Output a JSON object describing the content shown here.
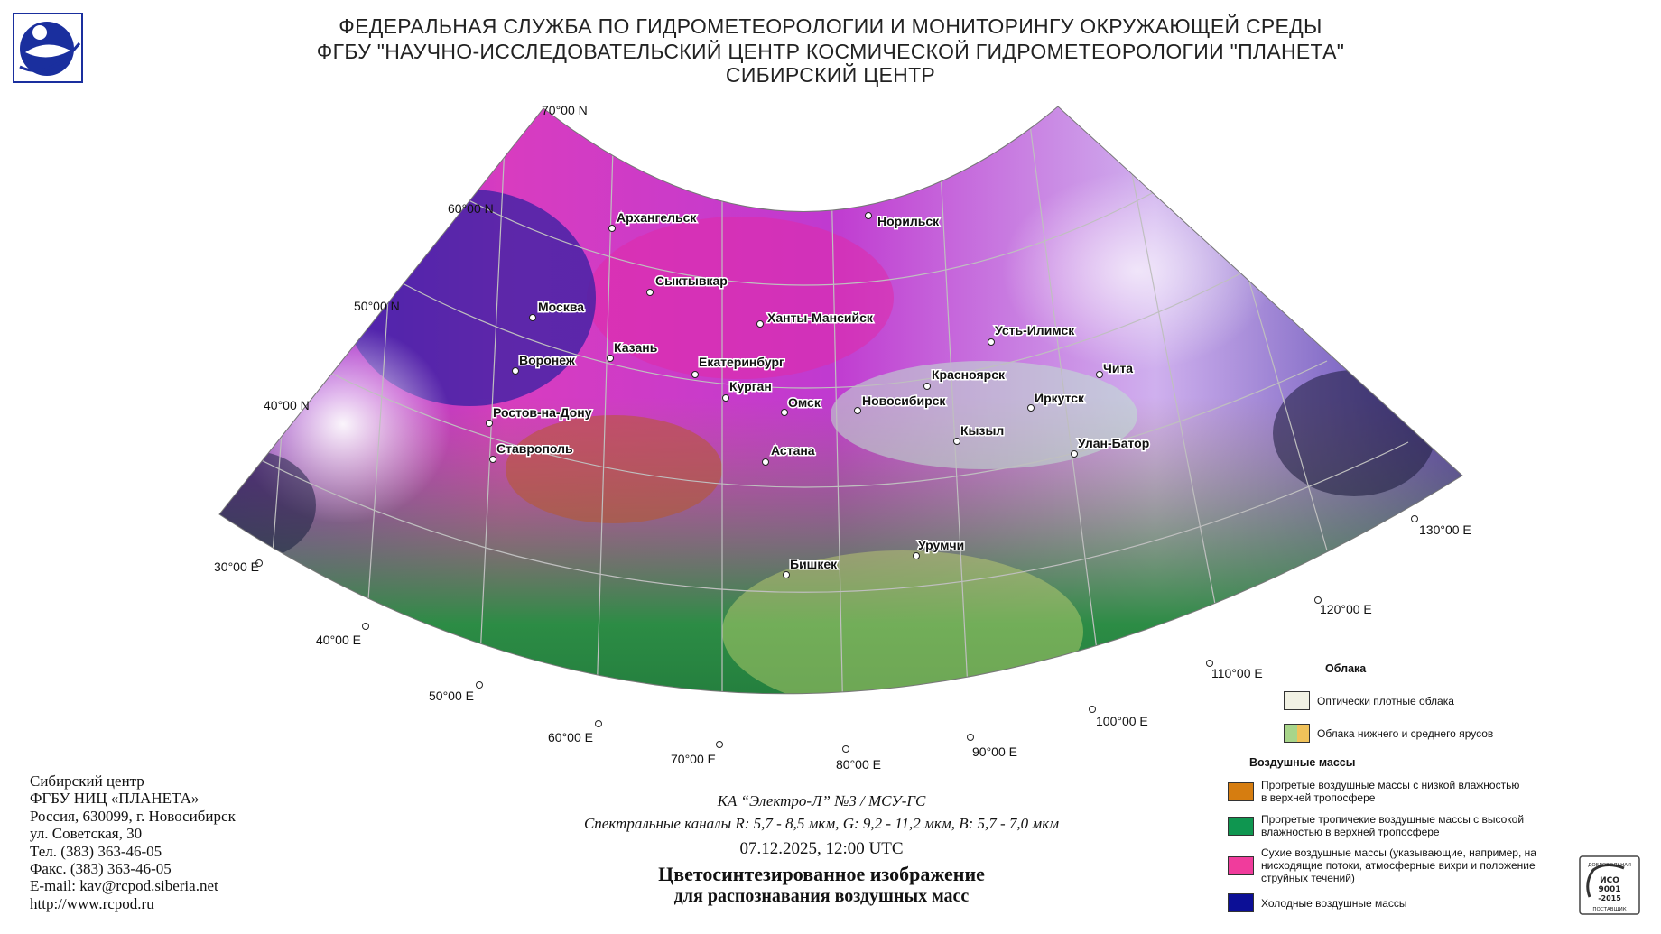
{
  "header": {
    "line1": "ФЕДЕРАЛЬНАЯ СЛУЖБА ПО ГИДРОМЕТЕОРОЛОГИИ И МОНИТОРИНГУ ОКРУЖАЮЩЕЙ СРЕДЫ",
    "line2": "ФГБУ \"НАУЧНО-ИССЛЕДОВАТЕЛЬСКИЙ ЦЕНТР КОСМИЧЕСКОЙ ГИДРОМЕТЕОРОЛОГИИ \"ПЛАНЕТА\"",
    "line3": "СИБИРСКИЙ ЦЕНТР"
  },
  "map": {
    "latitude_labels": [
      "70°00 N",
      "60°00 N",
      "50°00 N",
      "40°00 N"
    ],
    "longitude_labels": [
      "30°00 E",
      "40°00 E",
      "50°00 E",
      "60°00 E",
      "70°00 E",
      "80°00 E",
      "90°00 E",
      "100°00 E",
      "110°00 E",
      "120°00 E",
      "130°00 E"
    ],
    "cities": [
      "Архангельск",
      "Норильск",
      "Сыктывкар",
      "Москва",
      "Ханты-Мансийск",
      "Усть-Илимск",
      "Казань",
      "Воронеж",
      "Екатеринбург",
      "Красноярск",
      "Чита",
      "Курган",
      "Омск",
      "Новосибирск",
      "Иркутск",
      "Ростов-на-Дону",
      "Кызыл",
      "Улан-Батор",
      "Ставрополь",
      "Астана",
      "Урумчи",
      "Бишкек"
    ]
  },
  "address": [
    "Сибирский центр",
    "ФГБУ НИЦ «ПЛАНЕТА»",
    "Россия, 630099, г. Новосибирск",
    "ул. Советская, 30",
    "Тел. (383) 363-46-05",
    "Факс. (383) 363-46-05",
    "E-mail: kav@rcpod.siberia.net",
    "http://www.rcpod.ru"
  ],
  "caption": {
    "satellite": "КА “Электро-Л” №3 / МСУ-ГС",
    "channels": "Спектральные каналы R: 5,7 - 8,5 мкм, G: 9,2 - 11,2 мкм, B: 5,7 - 7,0 мкм",
    "datetime": "07.12.2025, 12:00 UTC",
    "title1": "Цветосинтезированное изображение",
    "title2": "для распознавания воздушных масс"
  },
  "legend": {
    "clouds_heading": "Облака",
    "clouds_items": [
      {
        "label": "Оптически плотные облака",
        "color": "#f2f2e4"
      },
      {
        "label": "Облака нижнего и среднего ярусов",
        "colors": [
          "#a8d58a",
          "#f0c25a"
        ]
      }
    ],
    "airmass_heading": "Воздушные массы",
    "airmass_items": [
      {
        "label": "Прогретые воздушные массы с низкой влажностью в верхней тропосфере",
        "color": "#d67d10"
      },
      {
        "label": "Прогретые тропичекие воздушные массы с высокой влажностью в верхней тропосфере",
        "color": "#0f9650"
      },
      {
        "label": "Сухие воздушные массы (указывающие, например, на нисходящие потоки, атмосферные вихри и положение струйных течений)",
        "color": "#f03c9c"
      },
      {
        "label": "Холодные воздушные массы",
        "color": "#0c0f96"
      }
    ]
  },
  "iso": {
    "text_top": "ДОБРОВОЛЬНАЯ",
    "text_mid1": "ИСО",
    "text_mid2": "9001",
    "text_mid3": "-2015",
    "text_bottom": "ПОСТАВЩИК"
  }
}
